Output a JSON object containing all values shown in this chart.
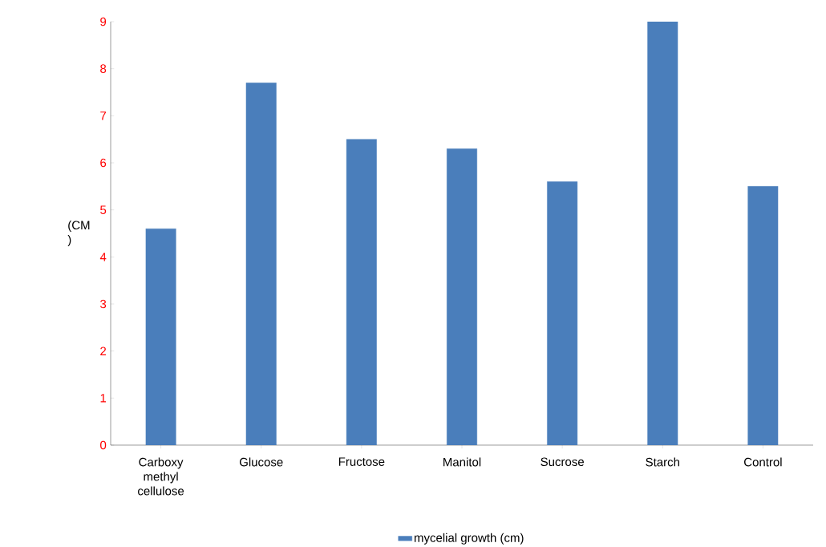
{
  "chart_data": {
    "type": "bar",
    "ylabel": "(CM )",
    "categories": [
      "Carboxy methyl cellulose",
      "Glucose",
      "Fructose",
      "Manitol",
      "Sucrose",
      "Starch",
      "Control"
    ],
    "series": [
      {
        "name": "mycelial growth (cm)",
        "color": "#4a7ebb",
        "values": [
          4.6,
          7.7,
          6.5,
          6.3,
          5.6,
          9.0,
          5.5
        ]
      }
    ],
    "ylim": [
      0,
      9
    ],
    "yticks": [
      0,
      1,
      2,
      3,
      4,
      5,
      6,
      7,
      8,
      9
    ],
    "legend": "bottom"
  }
}
